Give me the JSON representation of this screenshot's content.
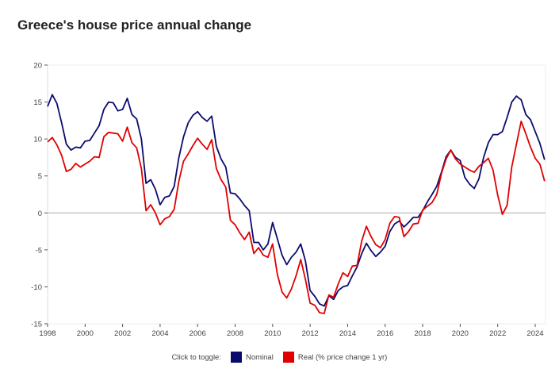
{
  "title": "Greece's house price annual change",
  "legend": {
    "prompt": "Click to toggle:"
  },
  "chart_data": {
    "type": "line",
    "title": "Greece's house price annual change",
    "xlabel": "",
    "ylabel": "",
    "xlim": [
      1998,
      2024.55
    ],
    "ylim": [
      -15,
      20
    ],
    "yticks": [
      -15,
      -10,
      -5,
      0,
      5,
      10,
      15,
      20
    ],
    "xticks": [
      1998,
      2000,
      2002,
      2004,
      2006,
      2008,
      2010,
      2012,
      2014,
      2016,
      2018,
      2020,
      2022,
      2024
    ],
    "grid": false,
    "legend_placement": "bottom",
    "x_start": 1998,
    "x_step": 0.25,
    "series": [
      {
        "name": "Nominal",
        "color": "#0b0b6e",
        "values": [
          14.4,
          16.0,
          14.8,
          12.2,
          9.3,
          8.5,
          8.9,
          8.8,
          9.7,
          9.8,
          10.8,
          11.8,
          14.0,
          15.0,
          14.9,
          13.8,
          14.0,
          15.5,
          13.3,
          12.7,
          10.0,
          4.0,
          4.5,
          3.2,
          1.1,
          2.1,
          2.3,
          3.6,
          7.5,
          10.3,
          12.2,
          13.2,
          13.7,
          12.9,
          12.4,
          13.1,
          9.0,
          7.3,
          6.2,
          2.7,
          2.6,
          1.9,
          1.0,
          0.3,
          -4.0,
          -4.0,
          -5.0,
          -4.2,
          -1.3,
          -3.5,
          -5.7,
          -7.0,
          -6.0,
          -5.3,
          -4.2,
          -6.5,
          -10.5,
          -11.3,
          -12.3,
          -12.6,
          -11.2,
          -11.7,
          -10.5,
          -10.0,
          -9.8,
          -8.5,
          -7.3,
          -5.5,
          -4.1,
          -5.1,
          -5.9,
          -5.3,
          -4.5,
          -2.5,
          -1.5,
          -1.1,
          -1.9,
          -1.3,
          -0.6,
          -0.6,
          0.3,
          1.5,
          2.5,
          3.6,
          5.5,
          7.6,
          8.5,
          7.5,
          7.1,
          4.8,
          3.9,
          3.3,
          4.6,
          7.5,
          9.5,
          10.6,
          10.6,
          11.0,
          12.9,
          15.0,
          15.8,
          15.3,
          13.3,
          12.6,
          11.0,
          9.4,
          7.2
        ]
      },
      {
        "name": "Real (% price change 1 yr)",
        "color": "#e00000",
        "values": [
          9.6,
          10.2,
          9.2,
          7.8,
          5.6,
          5.9,
          6.7,
          6.2,
          6.6,
          7.0,
          7.6,
          7.5,
          10.3,
          10.9,
          10.8,
          10.7,
          9.7,
          11.6,
          9.5,
          8.8,
          6.0,
          0.3,
          1.1,
          0.0,
          -1.6,
          -0.8,
          -0.5,
          0.5,
          4.3,
          7.0,
          8.0,
          9.1,
          10.1,
          9.3,
          8.6,
          9.9,
          6.0,
          4.5,
          3.5,
          -1.0,
          -1.6,
          -2.7,
          -3.6,
          -2.6,
          -5.5,
          -4.7,
          -5.7,
          -6.0,
          -4.2,
          -8.3,
          -10.7,
          -11.5,
          -10.3,
          -8.5,
          -6.3,
          -9.0,
          -12.2,
          -12.5,
          -13.5,
          -13.6,
          -11.1,
          -11.4,
          -9.6,
          -8.1,
          -8.6,
          -7.2,
          -7.1,
          -3.8,
          -1.8,
          -3.2,
          -4.3,
          -4.7,
          -3.6,
          -1.4,
          -0.5,
          -0.6,
          -3.2,
          -2.5,
          -1.5,
          -1.4,
          0.4,
          0.9,
          1.4,
          2.5,
          5.3,
          7.3,
          8.5,
          7.3,
          6.6,
          6.2,
          5.8,
          5.5,
          6.3,
          6.8,
          7.4,
          5.8,
          2.4,
          -0.2,
          1.0,
          6.2,
          9.3,
          12.4,
          10.7,
          8.9,
          7.4,
          6.6,
          4.3
        ]
      }
    ]
  }
}
